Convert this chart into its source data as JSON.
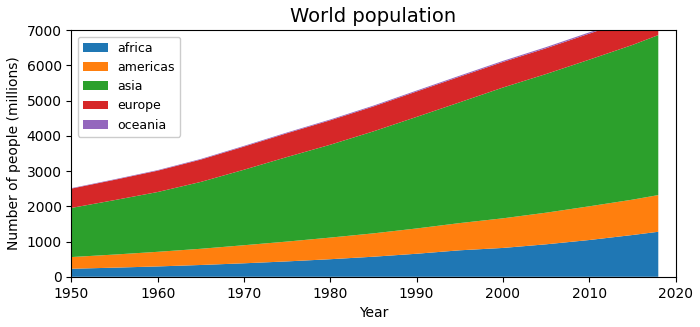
{
  "title": "World population",
  "xlabel": "Year",
  "ylabel": "Number of people (millions)",
  "years": [
    1950,
    1955,
    1960,
    1965,
    1970,
    1975,
    1980,
    1985,
    1990,
    1995,
    2000,
    2005,
    2010,
    2015,
    2018
  ],
  "africa": [
    228,
    259,
    294,
    335,
    383,
    437,
    499,
    570,
    654,
    752,
    819,
    922,
    1044,
    1186,
    1278
  ],
  "americas": [
    332,
    372,
    415,
    460,
    513,
    563,
    614,
    663,
    718,
    773,
    841,
    898,
    957,
    1004,
    1042
  ],
  "asia": [
    1395,
    1546,
    1698,
    1899,
    2144,
    2402,
    2637,
    2897,
    3168,
    3430,
    3714,
    3938,
    4165,
    4393,
    4543
  ],
  "europe": [
    549,
    576,
    606,
    634,
    657,
    676,
    694,
    706,
    721,
    728,
    726,
    731,
    738,
    745,
    751
  ],
  "oceania": [
    13,
    15,
    16,
    18,
    20,
    21,
    23,
    25,
    27,
    29,
    31,
    33,
    36,
    39,
    41
  ],
  "colors": {
    "africa": "#1f77b4",
    "americas": "#ff7f0e",
    "asia": "#2ca02c",
    "europe": "#d62728",
    "oceania": "#9467bd"
  },
  "ylim": [
    0,
    7000
  ],
  "xlim": [
    1950,
    2020
  ],
  "yticks": [
    0,
    1000,
    2000,
    3000,
    4000,
    5000,
    6000,
    7000
  ],
  "xticks": [
    1950,
    1960,
    1970,
    1980,
    1990,
    2000,
    2010,
    2020
  ],
  "title_fontsize": 14,
  "label_fontsize": 10,
  "legend_fontsize": 9
}
